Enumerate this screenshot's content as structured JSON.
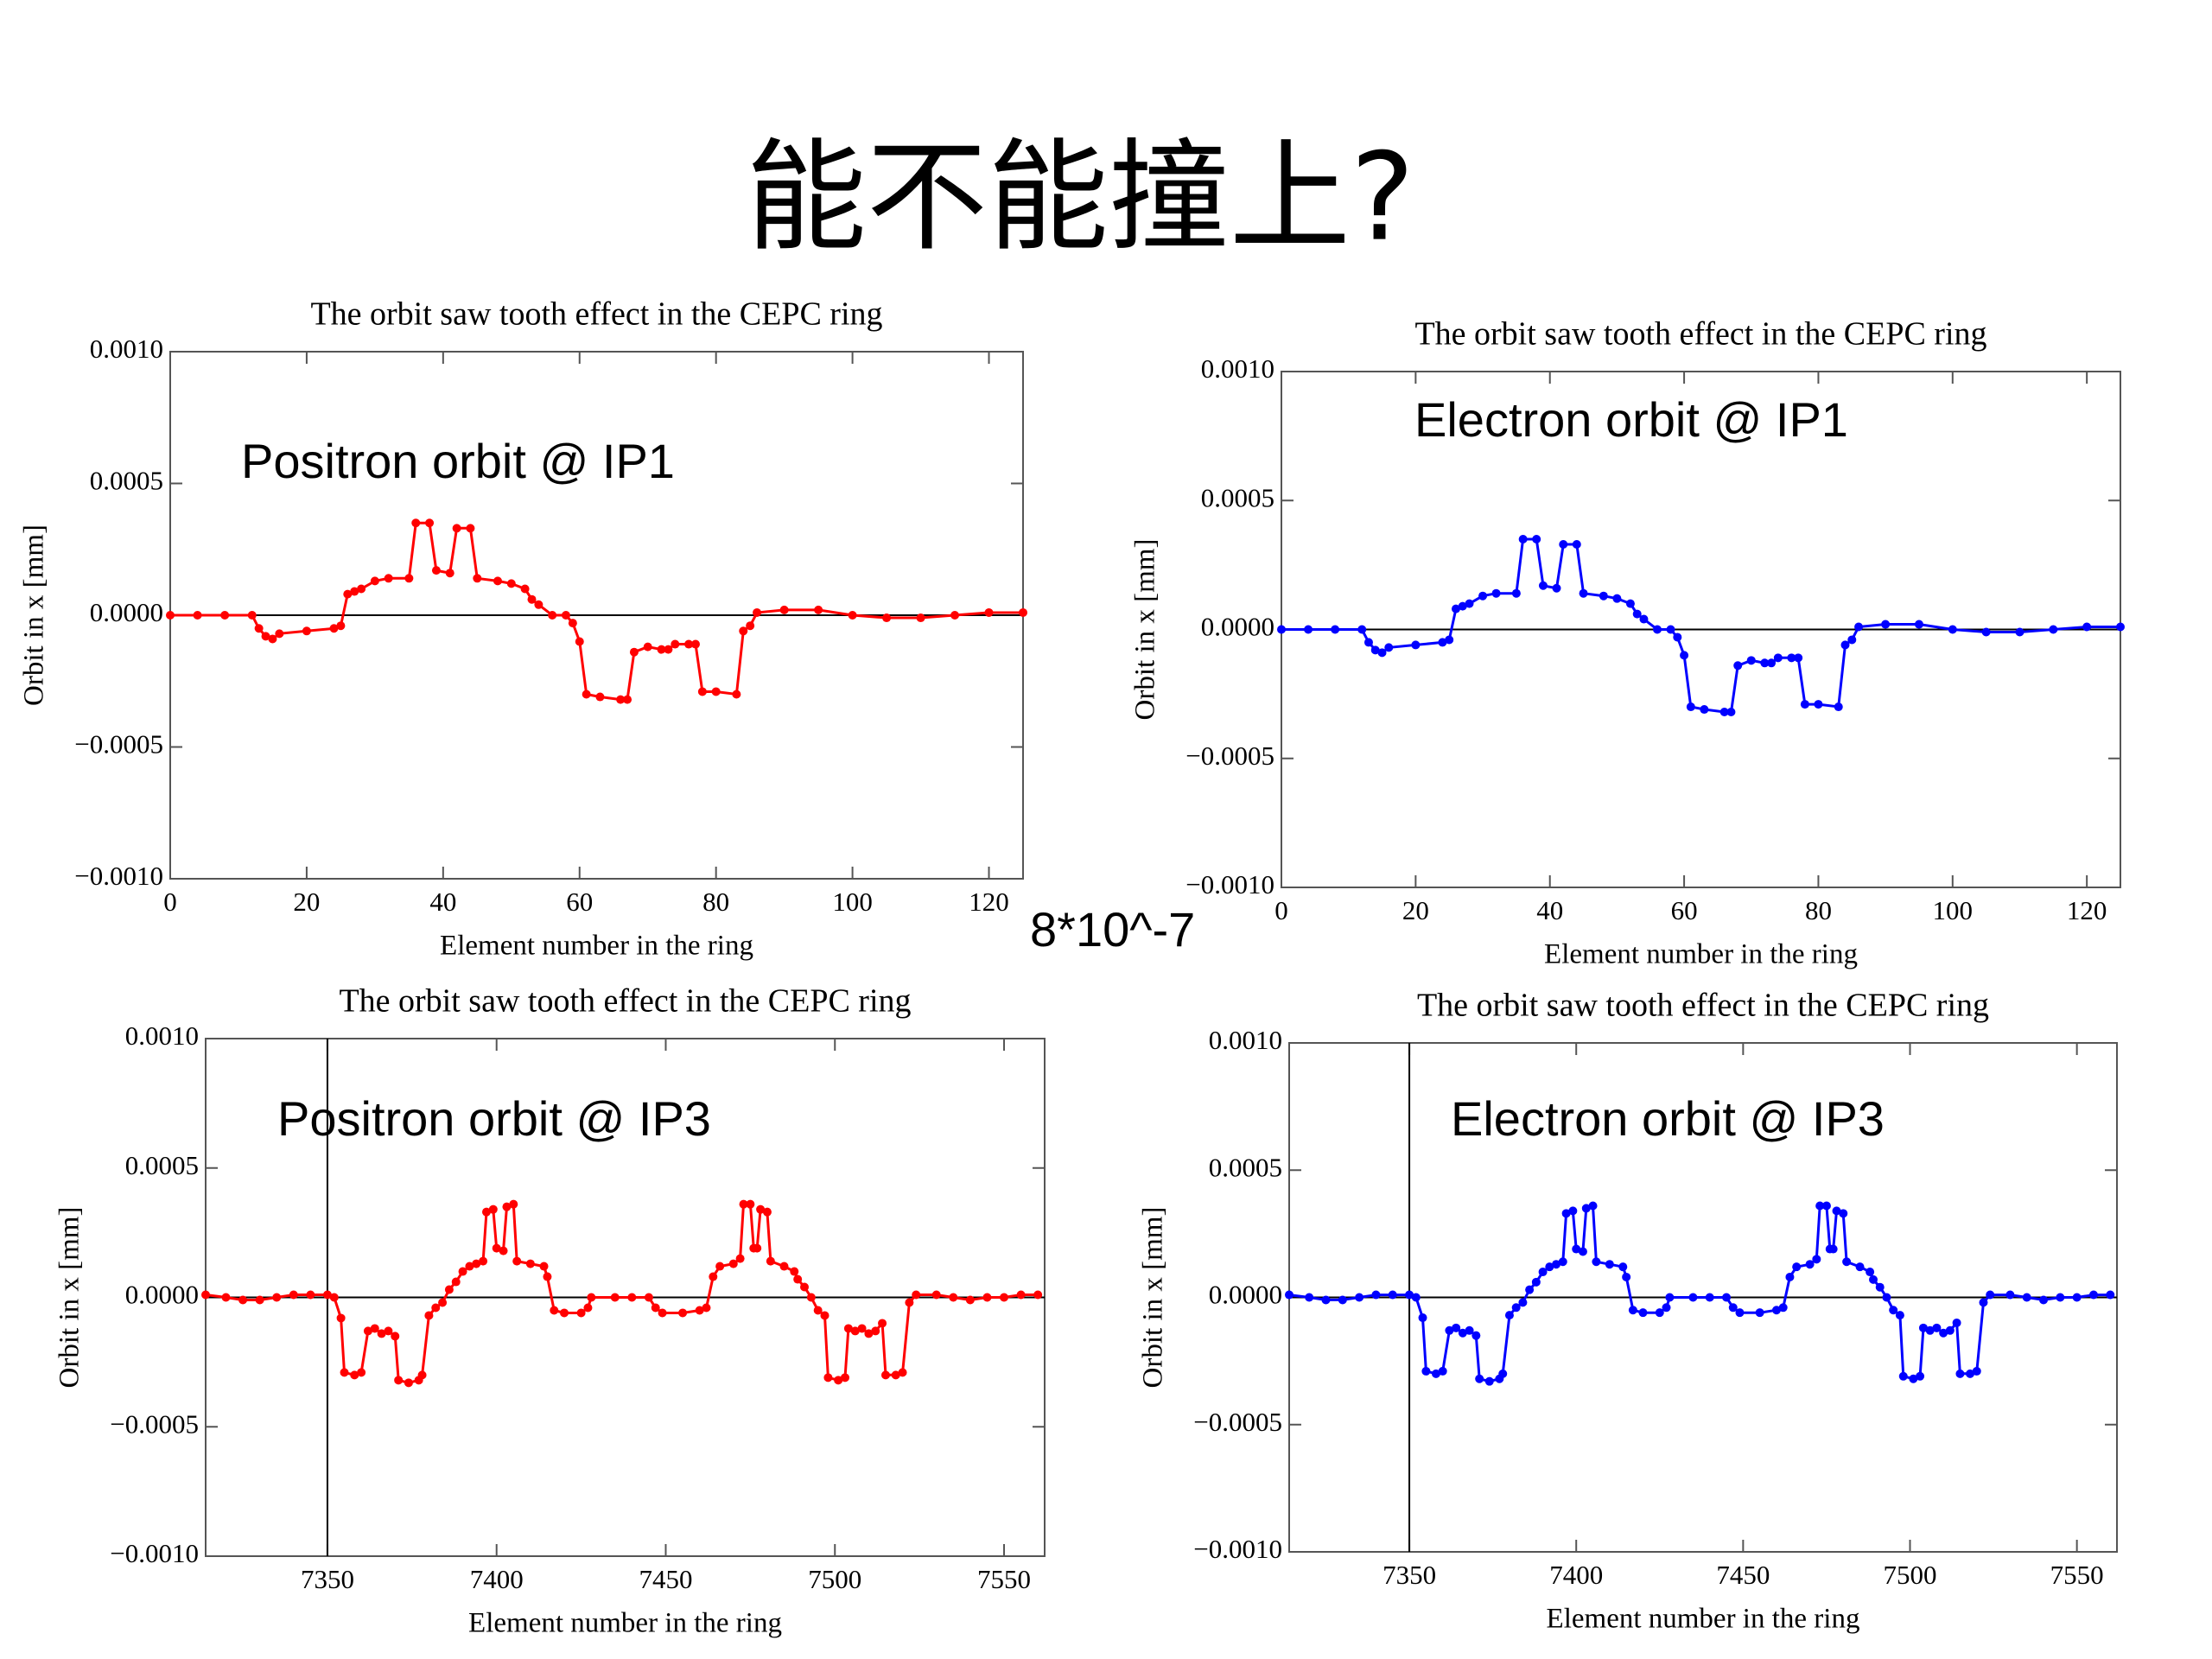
{
  "slide": {
    "title": "能不能撞上?",
    "note": "8*10^-7"
  },
  "chart_data": [
    {
      "type": "line",
      "title": "The orbit saw tooth effect in the CEPC ring",
      "annotation": "Positron orbit @ IP1",
      "x_label": "Element number in the ring",
      "y_label": "Orbit in x [mm]",
      "xlim": [
        0,
        125
      ],
      "xticks": [
        0,
        20,
        40,
        60,
        80,
        100,
        120
      ],
      "ylim": [
        -0.001,
        0.001
      ],
      "yticks": [
        {
          "value": -0.001,
          "label": "−0.0010"
        },
        {
          "value": -0.0005,
          "label": "−0.0005"
        },
        {
          "value": 0,
          "label": "0.0000"
        },
        {
          "value": 0.0005,
          "label": "0.0005"
        },
        {
          "value": 0.001,
          "label": "0.0010"
        }
      ],
      "series": [
        {
          "color": "#ff0000",
          "x": [
            0,
            4,
            8,
            12,
            13,
            14,
            15,
            16,
            20,
            24,
            25,
            26,
            27,
            28,
            30,
            32,
            35,
            36,
            38,
            39,
            41,
            42,
            44,
            45,
            48,
            50,
            52,
            53,
            54,
            56,
            58,
            59,
            60,
            61,
            63,
            66,
            67,
            68,
            70,
            72,
            73,
            74,
            76,
            77,
            78,
            80,
            83,
            84,
            85,
            86,
            90,
            95,
            100,
            105,
            110,
            115,
            120,
            125
          ],
          "values": [
            0,
            0,
            0,
            0,
            -5e-05,
            -8e-05,
            -9e-05,
            -7e-05,
            -6e-05,
            -5e-05,
            -4e-05,
            8e-05,
            9e-05,
            0.0001,
            0.00013,
            0.00014,
            0.00014,
            0.00035,
            0.00035,
            0.00017,
            0.00016,
            0.00033,
            0.00033,
            0.00014,
            0.00013,
            0.00012,
            0.0001,
            6e-05,
            4e-05,
            0,
            0,
            -3e-05,
            -0.0001,
            -0.0003,
            -0.00031,
            -0.00032,
            -0.00032,
            -0.00014,
            -0.00012,
            -0.00013,
            -0.00013,
            -0.00011,
            -0.00011,
            -0.00011,
            -0.00029,
            -0.00029,
            -0.0003,
            -6e-05,
            -4e-05,
            1e-05,
            2e-05,
            2e-05,
            0,
            -1e-05,
            -1e-05,
            0,
            1e-05,
            1e-05
          ]
        }
      ]
    },
    {
      "type": "line",
      "title": "The orbit saw tooth effect in the CEPC ring",
      "annotation": "Electron orbit @ IP1",
      "x_label": "Element number in the ring",
      "y_label": "Orbit in x [mm]",
      "xlim": [
        0,
        125
      ],
      "xticks": [
        0,
        20,
        40,
        60,
        80,
        100,
        120
      ],
      "ylim": [
        -0.001,
        0.001
      ],
      "yticks": [
        {
          "value": -0.001,
          "label": "−0.0010"
        },
        {
          "value": -0.0005,
          "label": "−0.0005"
        },
        {
          "value": 0,
          "label": "0.0000"
        },
        {
          "value": 0.0005,
          "label": "0.0005"
        },
        {
          "value": 0.001,
          "label": "0.0010"
        }
      ],
      "series": [
        {
          "color": "#0000ff",
          "x": [
            0,
            4,
            8,
            12,
            13,
            14,
            15,
            16,
            20,
            24,
            25,
            26,
            27,
            28,
            30,
            32,
            35,
            36,
            38,
            39,
            41,
            42,
            44,
            45,
            48,
            50,
            52,
            53,
            54,
            56,
            58,
            59,
            60,
            61,
            63,
            66,
            67,
            68,
            70,
            72,
            73,
            74,
            76,
            77,
            78,
            80,
            83,
            84,
            85,
            86,
            90,
            95,
            100,
            105,
            110,
            115,
            120,
            125
          ],
          "values": [
            0,
            0,
            0,
            0,
            -5e-05,
            -8e-05,
            -9e-05,
            -7e-05,
            -6e-05,
            -5e-05,
            -4e-05,
            8e-05,
            9e-05,
            0.0001,
            0.00013,
            0.00014,
            0.00014,
            0.00035,
            0.00035,
            0.00017,
            0.00016,
            0.00033,
            0.00033,
            0.00014,
            0.00013,
            0.00012,
            0.0001,
            6e-05,
            4e-05,
            0,
            0,
            -3e-05,
            -0.0001,
            -0.0003,
            -0.00031,
            -0.00032,
            -0.00032,
            -0.00014,
            -0.00012,
            -0.00013,
            -0.00013,
            -0.00011,
            -0.00011,
            -0.00011,
            -0.00029,
            -0.00029,
            -0.0003,
            -6e-05,
            -4e-05,
            1e-05,
            2e-05,
            2e-05,
            0,
            -1e-05,
            -1e-05,
            0,
            1e-05,
            1e-05
          ]
        }
      ]
    },
    {
      "type": "line",
      "title": "The orbit saw tooth effect in the CEPC ring",
      "annotation": "Positron orbit @ IP3",
      "x_label": "Element number in the ring",
      "y_label": "Orbit in x [mm]",
      "xlim": [
        7314,
        7562
      ],
      "xticks": [
        7350,
        7400,
        7450,
        7500,
        7550
      ],
      "vline": 7350,
      "ylim": [
        -0.001,
        0.001
      ],
      "yticks": [
        {
          "value": -0.001,
          "label": "−0.0010"
        },
        {
          "value": -0.0005,
          "label": "−0.0005"
        },
        {
          "value": 0,
          "label": "0.0000"
        },
        {
          "value": 0.0005,
          "label": "0.0005"
        },
        {
          "value": 0.001,
          "label": "0.0010"
        }
      ],
      "series": [
        {
          "color": "#ff0000",
          "x": [
            7314,
            7320,
            7325,
            7330,
            7335,
            7340,
            7345,
            7350,
            7352,
            7354,
            7355,
            7358,
            7360,
            7362,
            7364,
            7366,
            7368,
            7370,
            7371,
            7374,
            7377,
            7378,
            7380,
            7382,
            7384,
            7386,
            7388,
            7390,
            7392,
            7394,
            7396,
            7397,
            7399,
            7400,
            7402,
            7403,
            7405,
            7406,
            7410,
            7414,
            7415,
            7417,
            7420,
            7425,
            7427,
            7428,
            7435,
            7440,
            7445,
            7447,
            7449,
            7455,
            7460,
            7462,
            7464,
            7466,
            7470,
            7472,
            7473,
            7475,
            7476,
            7477,
            7478,
            7480,
            7481,
            7485,
            7488,
            7489,
            7491,
            7493,
            7495,
            7497,
            7498,
            7501,
            7503,
            7504,
            7506,
            7508,
            7510,
            7512,
            7514,
            7515,
            7518,
            7520,
            7522,
            7524,
            7530,
            7535,
            7540,
            7545,
            7550,
            7555,
            7560
          ],
          "values": [
            1e-05,
            0,
            -1e-05,
            -1e-05,
            0,
            1e-05,
            1e-05,
            1e-05,
            0,
            -8e-05,
            -0.00029,
            -0.0003,
            -0.00029,
            -0.00013,
            -0.00012,
            -0.00014,
            -0.00013,
            -0.00015,
            -0.00032,
            -0.00033,
            -0.00032,
            -0.0003,
            -7e-05,
            -4e-05,
            -2e-05,
            3e-05,
            6e-05,
            0.0001,
            0.00012,
            0.00013,
            0.00014,
            0.00033,
            0.00034,
            0.00019,
            0.00018,
            0.00035,
            0.00036,
            0.00014,
            0.00013,
            0.00012,
            8e-05,
            -5e-05,
            -6e-05,
            -6e-05,
            -4e-05,
            0,
            0,
            0,
            0,
            -4e-05,
            -6e-05,
            -6e-05,
            -5e-05,
            -4e-05,
            8e-05,
            0.00012,
            0.00013,
            0.00015,
            0.00036,
            0.00036,
            0.00019,
            0.00019,
            0.00034,
            0.00033,
            0.00014,
            0.00012,
            0.0001,
            7e-05,
            4e-05,
            0,
            -5e-05,
            -7e-05,
            -0.00031,
            -0.00032,
            -0.00031,
            -0.00012,
            -0.00013,
            -0.00012,
            -0.00014,
            -0.00013,
            -0.0001,
            -0.0003,
            -0.0003,
            -0.00029,
            -2e-05,
            1e-05,
            1e-05,
            0,
            -1e-05,
            0,
            0,
            1e-05,
            1e-05
          ]
        }
      ]
    },
    {
      "type": "line",
      "title": "The orbit saw tooth effect in the CEPC ring",
      "annotation": "Electron orbit @ IP3",
      "x_label": "Element number in the ring",
      "y_label": "Orbit in x [mm]",
      "xlim": [
        7314,
        7562
      ],
      "xticks": [
        7350,
        7400,
        7450,
        7500,
        7550
      ],
      "vline": 7350,
      "ylim": [
        -0.001,
        0.001
      ],
      "yticks": [
        {
          "value": -0.001,
          "label": "−0.0010"
        },
        {
          "value": -0.0005,
          "label": "−0.0005"
        },
        {
          "value": 0,
          "label": "0.0000"
        },
        {
          "value": 0.0005,
          "label": "0.0005"
        },
        {
          "value": 0.001,
          "label": "0.0010"
        }
      ],
      "series": [
        {
          "color": "#0000ff",
          "x": [
            7314,
            7320,
            7325,
            7330,
            7335,
            7340,
            7345,
            7350,
            7352,
            7354,
            7355,
            7358,
            7360,
            7362,
            7364,
            7366,
            7368,
            7370,
            7371,
            7374,
            7377,
            7378,
            7380,
            7382,
            7384,
            7386,
            7388,
            7390,
            7392,
            7394,
            7396,
            7397,
            7399,
            7400,
            7402,
            7403,
            7405,
            7406,
            7410,
            7414,
            7415,
            7417,
            7420,
            7425,
            7427,
            7428,
            7435,
            7440,
            7445,
            7447,
            7449,
            7455,
            7460,
            7462,
            7464,
            7466,
            7470,
            7472,
            7473,
            7475,
            7476,
            7477,
            7478,
            7480,
            7481,
            7485,
            7488,
            7489,
            7491,
            7493,
            7495,
            7497,
            7498,
            7501,
            7503,
            7504,
            7506,
            7508,
            7510,
            7512,
            7514,
            7515,
            7518,
            7520,
            7522,
            7524,
            7530,
            7535,
            7540,
            7545,
            7550,
            7555,
            7560
          ],
          "values": [
            1e-05,
            0,
            -1e-05,
            -1e-05,
            0,
            1e-05,
            1e-05,
            1e-05,
            0,
            -8e-05,
            -0.00029,
            -0.0003,
            -0.00029,
            -0.00013,
            -0.00012,
            -0.00014,
            -0.00013,
            -0.00015,
            -0.00032,
            -0.00033,
            -0.00032,
            -0.0003,
            -7e-05,
            -4e-05,
            -2e-05,
            3e-05,
            6e-05,
            0.0001,
            0.00012,
            0.00013,
            0.00014,
            0.00033,
            0.00034,
            0.00019,
            0.00018,
            0.00035,
            0.00036,
            0.00014,
            0.00013,
            0.00012,
            8e-05,
            -5e-05,
            -6e-05,
            -6e-05,
            -4e-05,
            0,
            0,
            0,
            0,
            -4e-05,
            -6e-05,
            -6e-05,
            -5e-05,
            -4e-05,
            8e-05,
            0.00012,
            0.00013,
            0.00015,
            0.00036,
            0.00036,
            0.00019,
            0.00019,
            0.00034,
            0.00033,
            0.00014,
            0.00012,
            0.0001,
            7e-05,
            4e-05,
            0,
            -5e-05,
            -7e-05,
            -0.00031,
            -0.00032,
            -0.00031,
            -0.00012,
            -0.00013,
            -0.00012,
            -0.00014,
            -0.00013,
            -0.0001,
            -0.0003,
            -0.0003,
            -0.00029,
            -2e-05,
            1e-05,
            1e-05,
            0,
            -1e-05,
            0,
            0,
            1e-05,
            1e-05
          ]
        }
      ]
    }
  ]
}
